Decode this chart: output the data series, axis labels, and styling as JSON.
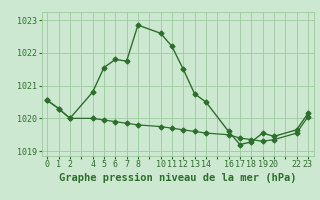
{
  "title": "Graphe pression niveau de la mer (hPa)",
  "bg_color": "#cde8d0",
  "plot_bg_color": "#cde8d0",
  "grid_color": "#9dc99d",
  "line_color": "#2d6e2d",
  "xlim": [
    -0.5,
    23.5
  ],
  "ylim": [
    1018.85,
    1023.25
  ],
  "yticks": [
    1019,
    1020,
    1021,
    1022,
    1023
  ],
  "xtick_positions": [
    0,
    1,
    2,
    3,
    4,
    5,
    6,
    7,
    8,
    9,
    10,
    11,
    12,
    13,
    14,
    15,
    16,
    17,
    18,
    19,
    20,
    21,
    22,
    23
  ],
  "xtick_labels": [
    "0",
    "1",
    "2",
    "",
    "4",
    "5",
    "6",
    "7",
    "8",
    "",
    "10",
    "11",
    "12",
    "13",
    "14",
    "",
    "16",
    "17",
    "18",
    "19",
    "20",
    "",
    "22",
    "23"
  ],
  "series1_x": [
    0,
    1,
    2,
    4,
    5,
    6,
    7,
    8,
    10,
    11,
    12,
    13,
    14,
    16,
    17,
    18,
    19,
    20,
    22,
    23
  ],
  "series1_y": [
    1020.55,
    1020.3,
    1020.0,
    1020.8,
    1021.55,
    1021.8,
    1021.75,
    1022.85,
    1022.6,
    1022.2,
    1021.5,
    1020.75,
    1020.5,
    1019.6,
    1019.2,
    1019.28,
    1019.55,
    1019.45,
    1019.65,
    1020.15
  ],
  "series2_x": [
    0,
    1,
    2,
    4,
    5,
    6,
    7,
    8,
    10,
    11,
    12,
    13,
    14,
    16,
    17,
    18,
    19,
    20,
    22,
    23
  ],
  "series2_y": [
    1020.55,
    1020.3,
    1020.0,
    1020.0,
    1019.95,
    1019.9,
    1019.85,
    1019.8,
    1019.75,
    1019.7,
    1019.65,
    1019.6,
    1019.55,
    1019.5,
    1019.4,
    1019.35,
    1019.3,
    1019.35,
    1019.55,
    1020.05
  ],
  "marker": "D",
  "marker_size": 2.5,
  "linewidth1": 1.0,
  "linewidth2": 0.9,
  "title_fontsize": 7.5,
  "tick_fontsize": 6.0
}
